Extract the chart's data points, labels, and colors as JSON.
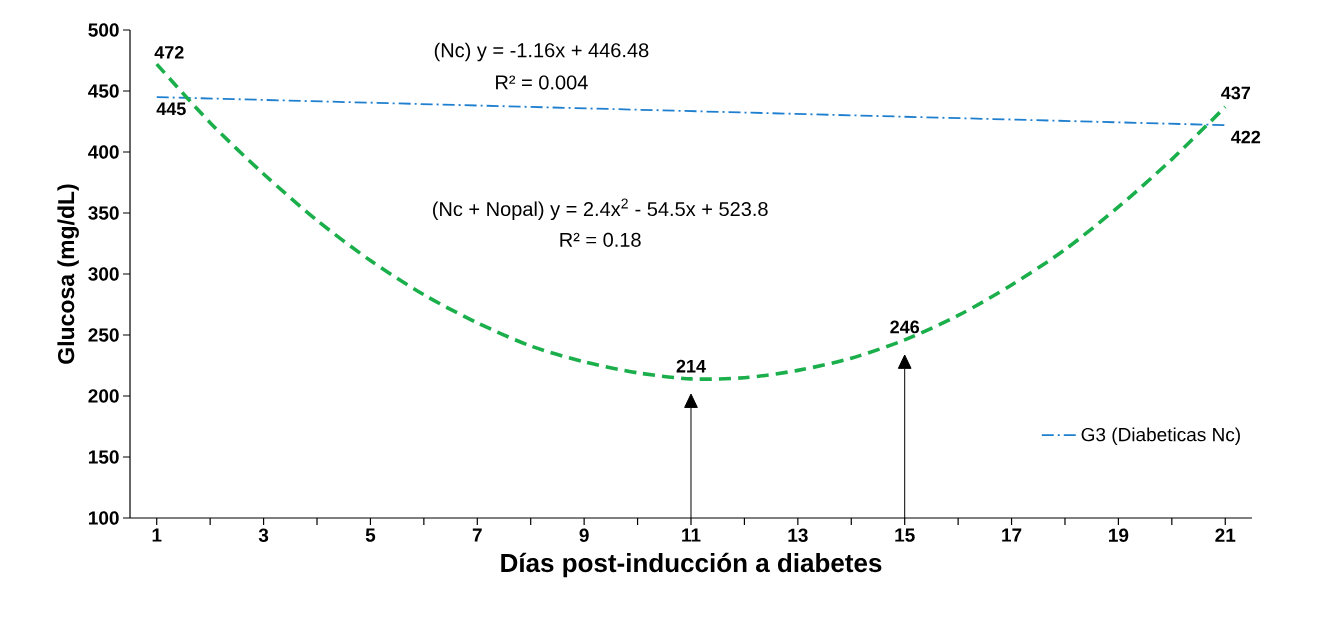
{
  "chart_data": {
    "type": "line",
    "xlabel": "Días post-inducción a diabetes",
    "ylabel": "Glucosa (mg/dL)",
    "annotations": [
      "(Nc) y = -1.16x + 446.48",
      "R² = 0.004",
      "(Nc + Nopal)  y = 2.4x$^{2}$ - 54.5x + 523.8",
      "R² = 0.18"
    ],
    "xlim": [
      0.5,
      21.5
    ],
    "xticks": [
      1,
      {
        "value": 2,
        "label": null
      },
      3,
      {
        "value": 4,
        "label": null
      },
      5,
      {
        "value": 6,
        "label": null
      },
      7,
      {
        "value": 8,
        "label": null
      },
      9,
      {
        "value": 10,
        "label": null
      },
      11,
      {
        "value": 12,
        "label": null
      },
      13,
      {
        "value": 14,
        "label": null
      },
      15,
      {
        "value": 16,
        "label": null
      },
      17,
      {
        "value": 18,
        "label": null
      },
      19,
      {
        "value": 20,
        "label": null
      },
      21
    ],
    "ylim": [
      100,
      500
    ],
    "yticks": [
      100,
      150,
      200,
      250,
      300,
      350,
      400,
      450,
      500
    ],
    "grid": false,
    "legend": "right",
    "marker": "none",
    "series": [
      {
        "name": "G3 (Diabeticas Nc)",
        "color": "#1f7fcf",
        "line_style": "dashdot",
        "x": [
          1,
          21
        ],
        "values": [
          445,
          422
        ],
        "value_labels": [
          "445",
          "422"
        ]
      },
      {
        "color": "#1aaf4b",
        "line_style": "dashed",
        "x": [
          1,
          2,
          3,
          4,
          5,
          6,
          7,
          8,
          9,
          10,
          11,
          12,
          13,
          14,
          15,
          16,
          17,
          18,
          19,
          20,
          21
        ],
        "values": [
          472,
          424,
          382,
          344,
          311,
          283,
          260,
          241,
          228,
          219,
          214,
          215,
          221,
          231,
          246,
          266,
          291,
          320,
          355,
          394,
          437
        ],
        "value_labels": [
          "472",
          null,
          null,
          null,
          null,
          null,
          null,
          null,
          null,
          null,
          "214",
          null,
          null,
          null,
          "246",
          null,
          null,
          null,
          null,
          null,
          "437"
        ]
      }
    ]
  }
}
